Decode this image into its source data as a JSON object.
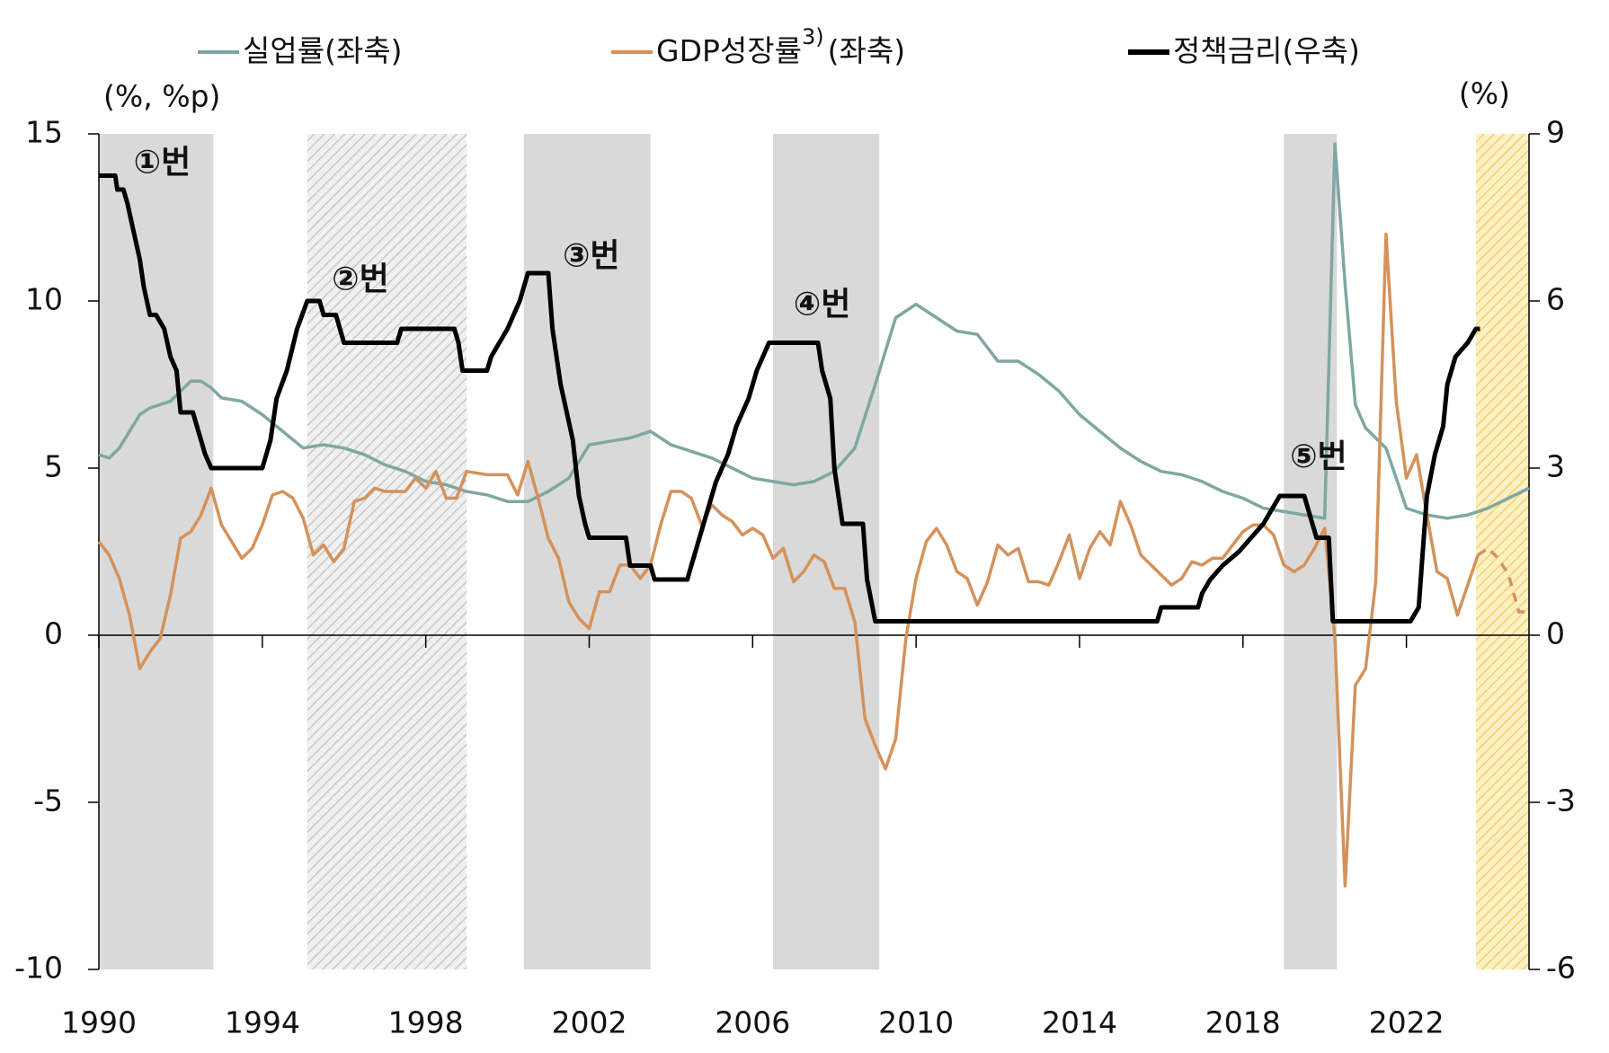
{
  "chart_data": {
    "type": "line",
    "y_label": "(%, %p)",
    "y2_label": "(%)",
    "xlim": [
      1990,
      2025
    ],
    "xticks": [
      1990,
      1994,
      1998,
      2002,
      2006,
      2010,
      2014,
      2018,
      2022
    ],
    "ylim": [
      -10,
      15
    ],
    "yticks": [
      -10,
      -5,
      0,
      5,
      10,
      15
    ],
    "y2lim": [
      -6,
      9
    ],
    "y2ticks": [
      -6,
      -3,
      0,
      3,
      6,
      9
    ],
    "shaded_regions": [
      {
        "start": 1990,
        "end": 1992.8,
        "style": "solid"
      },
      {
        "start": 1995.1,
        "end": 1999.0,
        "style": "hatched"
      },
      {
        "start": 2000.4,
        "end": 2003.5,
        "style": "solid"
      },
      {
        "start": 2006.5,
        "end": 2009.1,
        "style": "solid"
      },
      {
        "start": 2019.0,
        "end": 2020.3,
        "style": "solid"
      },
      {
        "start": 2023.7,
        "end": 2025.0,
        "style": "hatched-yellow"
      }
    ],
    "series": [
      {
        "name": "실업률(좌축)",
        "color": "#7fa7a3",
        "axis": "y",
        "x": [
          1990,
          1990.25,
          1990.5,
          1990.75,
          1991,
          1991.25,
          1991.5,
          1991.75,
          1992,
          1992.25,
          1992.5,
          1992.75,
          1993,
          1993.5,
          1994,
          1994.5,
          1995,
          1995.5,
          1996,
          1996.5,
          1997,
          1997.5,
          1998,
          1998.5,
          1999,
          1999.5,
          2000,
          2000.5,
          2001,
          2001.5,
          2002,
          2002.5,
          2003,
          2003.5,
          2004,
          2004.5,
          2005,
          2005.5,
          2006,
          2006.5,
          2007,
          2007.5,
          2008,
          2008.5,
          2009,
          2009.5,
          2010,
          2010.5,
          2011,
          2011.5,
          2012,
          2012.5,
          2013,
          2013.5,
          2014,
          2014.5,
          2015,
          2015.5,
          2016,
          2016.5,
          2017,
          2017.5,
          2018,
          2018.5,
          2019,
          2019.5,
          2020,
          2020.25,
          2020.5,
          2020.75,
          2021,
          2021.5,
          2022,
          2022.5,
          2023,
          2023.5,
          2024,
          2024.5,
          2025
        ],
        "values": [
          5.4,
          5.3,
          5.6,
          6.1,
          6.6,
          6.8,
          6.9,
          7.0,
          7.3,
          7.6,
          7.6,
          7.4,
          7.1,
          7.0,
          6.6,
          6.1,
          5.6,
          5.7,
          5.6,
          5.4,
          5.1,
          4.9,
          4.6,
          4.5,
          4.3,
          4.2,
          4.0,
          4.0,
          4.3,
          4.7,
          5.7,
          5.8,
          5.9,
          6.1,
          5.7,
          5.5,
          5.3,
          5.0,
          4.7,
          4.6,
          4.5,
          4.6,
          4.9,
          5.6,
          7.5,
          9.5,
          9.9,
          9.5,
          9.1,
          9.0,
          8.2,
          8.2,
          7.8,
          7.3,
          6.6,
          6.1,
          5.6,
          5.2,
          4.9,
          4.8,
          4.6,
          4.3,
          4.1,
          3.8,
          3.7,
          3.6,
          3.5,
          14.7,
          10.5,
          6.9,
          6.2,
          5.6,
          3.8,
          3.6,
          3.5,
          3.6,
          3.8,
          4.1,
          4.4
        ]
      },
      {
        "name": "GDP성장률",
        "legend_superscript": "3)",
        "legend_suffix": "(좌축)",
        "color": "#d4925a",
        "axis": "y",
        "forecast_from": 2023.75,
        "x": [
          1990,
          1990.25,
          1990.5,
          1990.75,
          1991,
          1991.25,
          1991.5,
          1991.75,
          1992,
          1992.25,
          1992.5,
          1992.75,
          1993,
          1993.25,
          1993.5,
          1993.75,
          1994,
          1994.25,
          1994.5,
          1994.75,
          1995,
          1995.25,
          1995.5,
          1995.75,
          1996,
          1996.25,
          1996.5,
          1996.75,
          1997,
          1997.5,
          1997.75,
          1998,
          1998.25,
          1998.5,
          1998.75,
          1999,
          1999.5,
          1999.75,
          2000,
          2000.25,
          2000.5,
          2000.75,
          2001,
          2001.25,
          2001.5,
          2001.75,
          2002,
          2002.25,
          2002.5,
          2002.75,
          2003,
          2003.25,
          2003.5,
          2003.75,
          2004,
          2004.25,
          2004.5,
          2004.75,
          2005,
          2005.25,
          2005.5,
          2005.75,
          2006,
          2006.25,
          2006.5,
          2006.75,
          2007,
          2007.25,
          2007.5,
          2007.75,
          2008,
          2008.25,
          2008.5,
          2008.75,
          2009,
          2009.25,
          2009.5,
          2009.75,
          2010,
          2010.25,
          2010.5,
          2010.75,
          2011,
          2011.25,
          2011.5,
          2011.75,
          2012,
          2012.25,
          2012.5,
          2012.75,
          2013,
          2013.25,
          2013.5,
          2013.75,
          2014,
          2014.25,
          2014.5,
          2014.75,
          2015,
          2015.25,
          2015.5,
          2015.75,
          2016,
          2016.25,
          2016.5,
          2016.75,
          2017,
          2017.25,
          2017.5,
          2017.75,
          2018,
          2018.25,
          2018.5,
          2018.75,
          2019,
          2019.25,
          2019.5,
          2019.75,
          2020,
          2020.25,
          2020.5,
          2020.75,
          2021,
          2021.25,
          2021.5,
          2021.75,
          2022,
          2022.25,
          2022.5,
          2022.75,
          2023,
          2023.25,
          2023.5,
          2023.75,
          2024,
          2024.25,
          2024.5,
          2024.75,
          2025
        ],
        "values": [
          2.8,
          2.4,
          1.7,
          0.6,
          -1.0,
          -0.5,
          -0.1,
          1.2,
          2.9,
          3.1,
          3.6,
          4.4,
          3.3,
          2.8,
          2.3,
          2.6,
          3.3,
          4.2,
          4.3,
          4.1,
          3.5,
          2.4,
          2.7,
          2.2,
          2.6,
          4.0,
          4.1,
          4.4,
          4.3,
          4.3,
          4.7,
          4.4,
          4.9,
          4.1,
          4.1,
          4.9,
          4.8,
          4.8,
          4.8,
          4.2,
          5.2,
          4.1,
          2.9,
          2.3,
          1.0,
          0.5,
          0.2,
          1.3,
          1.3,
          2.1,
          2.1,
          1.7,
          2.1,
          3.3,
          4.3,
          4.3,
          4.1,
          3.3,
          3.9,
          3.6,
          3.4,
          3.0,
          3.2,
          3.0,
          2.3,
          2.6,
          1.6,
          1.9,
          2.4,
          2.2,
          1.4,
          1.4,
          0.4,
          -2.5,
          -3.3,
          -4.0,
          -3.1,
          -0.1,
          1.7,
          2.8,
          3.2,
          2.7,
          1.9,
          1.7,
          0.9,
          1.6,
          2.7,
          2.4,
          2.6,
          1.6,
          1.6,
          1.5,
          2.2,
          3.0,
          1.7,
          2.6,
          3.1,
          2.7,
          4.0,
          3.3,
          2.4,
          2.1,
          1.8,
          1.5,
          1.7,
          2.2,
          2.1,
          2.3,
          2.3,
          2.7,
          3.1,
          3.3,
          3.3,
          3.0,
          2.1,
          1.9,
          2.1,
          2.6,
          3.2,
          -0.1,
          -7.5,
          -1.5,
          -1.0,
          1.6,
          12.0,
          7.0,
          4.7,
          5.4,
          3.6,
          1.9,
          1.7,
          0.6,
          1.5,
          2.4,
          2.6,
          2.3,
          1.8,
          0.7,
          0.7
        ]
      },
      {
        "name": "정책금리(우축)",
        "color": "#000000",
        "axis": "y2",
        "x": [
          1990,
          1990.4,
          1990.45,
          1990.6,
          1990.7,
          1990.85,
          1991,
          1991.1,
          1991.25,
          1991.4,
          1991.6,
          1991.75,
          1991.9,
          1992,
          1992.3,
          1992.4,
          1992.6,
          1992.75,
          1994,
          1994.2,
          1994.35,
          1994.6,
          1994.85,
          1995.1,
          1995.4,
          1995.5,
          1995.8,
          1996,
          1997.3,
          1997.4,
          1998.7,
          1998.8,
          1998.9,
          1999.5,
          1999.6,
          1999.8,
          2000,
          2000.3,
          2000.5,
          2001,
          2001.1,
          2001.3,
          2001.45,
          2001.6,
          2001.75,
          2001.9,
          2002,
          2002.9,
          2003,
          2003.5,
          2003.6,
          2004.4,
          2004.5,
          2004.7,
          2004.9,
          2005.1,
          2005.4,
          2005.6,
          2005.9,
          2006.1,
          2006.4,
          2007.6,
          2007.7,
          2007.9,
          2008,
          2008.2,
          2008.7,
          2008.8,
          2009,
          2015.9,
          2016,
          2016.9,
          2017,
          2017.2,
          2017.5,
          2017.9,
          2018.2,
          2018.5,
          2018.7,
          2018.9,
          2019.5,
          2019.6,
          2019.8,
          2020.1,
          2020.2,
          2022.1,
          2022.3,
          2022.4,
          2022.5,
          2022.7,
          2022.9,
          2023,
          2023.2,
          2023.5,
          2023.7,
          2023.8
        ],
        "values": [
          8.25,
          8.25,
          8.0,
          8.0,
          7.75,
          7.25,
          6.75,
          6.25,
          5.75,
          5.75,
          5.5,
          5.0,
          4.75,
          4.0,
          4.0,
          3.75,
          3.25,
          3.0,
          3.0,
          3.5,
          4.25,
          4.75,
          5.5,
          6.0,
          6.0,
          5.75,
          5.75,
          5.25,
          5.25,
          5.5,
          5.5,
          5.25,
          4.75,
          4.75,
          5.0,
          5.25,
          5.5,
          6.0,
          6.5,
          6.5,
          5.5,
          4.5,
          4.0,
          3.5,
          2.5,
          2.0,
          1.75,
          1.75,
          1.25,
          1.25,
          1.0,
          1.0,
          1.25,
          1.75,
          2.25,
          2.75,
          3.25,
          3.75,
          4.25,
          4.75,
          5.25,
          5.25,
          4.75,
          4.25,
          3.0,
          2.0,
          2.0,
          1.0,
          0.25,
          0.25,
          0.5,
          0.5,
          0.75,
          1.0,
          1.25,
          1.5,
          1.75,
          2.0,
          2.25,
          2.5,
          2.5,
          2.25,
          1.75,
          1.75,
          0.25,
          0.25,
          0.5,
          1.5,
          2.5,
          3.25,
          3.75,
          4.5,
          5.0,
          5.25,
          5.5,
          5.5
        ]
      }
    ],
    "annotations": [
      {
        "text": "①번",
        "x": 1990.85,
        "y": 14.1
      },
      {
        "text": "②번",
        "x": 1995.7,
        "y": 10.6
      },
      {
        "text": "③번",
        "x": 2001.35,
        "y": 11.3
      },
      {
        "text": "④번",
        "x": 2007.0,
        "y": 9.85
      },
      {
        "text": "⑤번",
        "x": 2019.15,
        "y": 5.3
      }
    ]
  }
}
